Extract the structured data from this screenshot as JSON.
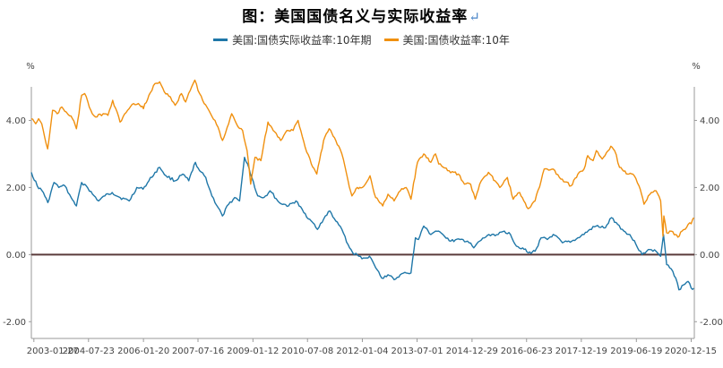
{
  "chart_data": {
    "type": "line",
    "title": "图：美国国债名义与实际收益率",
    "title_mark": "↵",
    "y_unit_left": "%",
    "y_unit_right": "%",
    "ylim": [
      -2.5,
      5.0
    ],
    "yticks": [
      4.0,
      2.0,
      0.0,
      -2.0
    ],
    "ytick_labels": [
      "4.00",
      "2.00",
      "0.00",
      "-2.00"
    ],
    "xlim": [
      "2003-01-02",
      "2021-01-15"
    ],
    "xticks": [
      "2003-01-27",
      "2004-07-23",
      "2006-01-20",
      "2007-07-16",
      "2009-01-12",
      "2010-07-08",
      "2012-01-04",
      "2013-07-01",
      "2014-12-29",
      "2016-06-23",
      "2017-12-19",
      "2019-06-19",
      "2020-12-15"
    ],
    "legend_position": "top-center",
    "grid": false,
    "zero_line": true,
    "colors": {
      "real": "#1f77a8",
      "nominal": "#f0900f",
      "zero": "#5a3a3a",
      "axis": "#9a9a9a"
    },
    "series": [
      {
        "name": "美国:国债实际收益率:10年期",
        "color": "#1f77a8",
        "points": [
          [
            "2003-01-02",
            2.45
          ],
          [
            "2003-03-01",
            2.05
          ],
          [
            "2003-05-01",
            1.85
          ],
          [
            "2003-06-15",
            1.55
          ],
          [
            "2003-08-15",
            2.15
          ],
          [
            "2003-10-01",
            2.0
          ],
          [
            "2003-12-01",
            2.05
          ],
          [
            "2004-02-01",
            1.7
          ],
          [
            "2004-03-25",
            1.45
          ],
          [
            "2004-05-15",
            2.15
          ],
          [
            "2004-07-01",
            2.05
          ],
          [
            "2004-09-01",
            1.8
          ],
          [
            "2004-11-01",
            1.6
          ],
          [
            "2005-01-01",
            1.75
          ],
          [
            "2005-03-15",
            1.85
          ],
          [
            "2005-06-01",
            1.7
          ],
          [
            "2005-09-01",
            1.6
          ],
          [
            "2005-11-15",
            2.0
          ],
          [
            "2006-01-15",
            1.95
          ],
          [
            "2006-03-15",
            2.2
          ],
          [
            "2006-05-15",
            2.45
          ],
          [
            "2006-06-30",
            2.6
          ],
          [
            "2006-09-01",
            2.35
          ],
          [
            "2006-12-01",
            2.2
          ],
          [
            "2007-02-15",
            2.4
          ],
          [
            "2007-04-15",
            2.2
          ],
          [
            "2007-06-20",
            2.75
          ],
          [
            "2007-08-01",
            2.5
          ],
          [
            "2007-10-01",
            2.3
          ],
          [
            "2007-12-01",
            1.75
          ],
          [
            "2008-02-01",
            1.4
          ],
          [
            "2008-03-15",
            1.15
          ],
          [
            "2008-05-15",
            1.5
          ],
          [
            "2008-07-15",
            1.7
          ],
          [
            "2008-09-01",
            1.6
          ],
          [
            "2008-10-20",
            2.9
          ],
          [
            "2008-11-20",
            2.7
          ],
          [
            "2009-01-01",
            2.3
          ],
          [
            "2009-03-01",
            1.75
          ],
          [
            "2009-05-01",
            1.7
          ],
          [
            "2009-07-01",
            1.9
          ],
          [
            "2009-10-01",
            1.55
          ],
          [
            "2010-01-01",
            1.45
          ],
          [
            "2010-03-15",
            1.6
          ],
          [
            "2010-06-01",
            1.25
          ],
          [
            "2010-08-15",
            1.0
          ],
          [
            "2010-10-15",
            0.75
          ],
          [
            "2011-01-01",
            1.15
          ],
          [
            "2011-02-15",
            1.3
          ],
          [
            "2011-04-15",
            1.0
          ],
          [
            "2011-06-15",
            0.75
          ],
          [
            "2011-08-15",
            0.3
          ],
          [
            "2011-10-01",
            0.05
          ],
          [
            "2011-12-01",
            -0.05
          ],
          [
            "2012-01-15",
            -0.1
          ],
          [
            "2012-03-15",
            -0.05
          ],
          [
            "2012-05-01",
            -0.3
          ],
          [
            "2012-07-15",
            -0.7
          ],
          [
            "2012-09-15",
            -0.6
          ],
          [
            "2012-11-15",
            -0.75
          ],
          [
            "2013-01-15",
            -0.6
          ],
          [
            "2013-03-15",
            -0.55
          ],
          [
            "2013-05-01",
            -0.55
          ],
          [
            "2013-06-15",
            0.5
          ],
          [
            "2013-07-15",
            0.45
          ],
          [
            "2013-09-05",
            0.85
          ],
          [
            "2013-11-15",
            0.6
          ],
          [
            "2014-01-01",
            0.7
          ],
          [
            "2014-03-15",
            0.6
          ],
          [
            "2014-06-01",
            0.4
          ],
          [
            "2014-09-01",
            0.45
          ],
          [
            "2014-11-15",
            0.4
          ],
          [
            "2015-01-15",
            0.2
          ],
          [
            "2015-03-15",
            0.4
          ],
          [
            "2015-06-15",
            0.6
          ],
          [
            "2015-09-15",
            0.6
          ],
          [
            "2015-11-15",
            0.7
          ],
          [
            "2016-01-15",
            0.6
          ],
          [
            "2016-03-15",
            0.25
          ],
          [
            "2016-05-15",
            0.2
          ],
          [
            "2016-07-10",
            0.05
          ],
          [
            "2016-09-15",
            0.1
          ],
          [
            "2016-11-15",
            0.5
          ],
          [
            "2017-01-15",
            0.45
          ],
          [
            "2017-03-15",
            0.6
          ],
          [
            "2017-06-15",
            0.35
          ],
          [
            "2017-09-15",
            0.4
          ],
          [
            "2017-11-15",
            0.5
          ],
          [
            "2018-01-15",
            0.6
          ],
          [
            "2018-03-15",
            0.75
          ],
          [
            "2018-05-15",
            0.85
          ],
          [
            "2018-08-15",
            0.8
          ],
          [
            "2018-10-15",
            1.1
          ],
          [
            "2018-12-15",
            0.9
          ],
          [
            "2019-02-15",
            0.7
          ],
          [
            "2019-04-15",
            0.6
          ],
          [
            "2019-06-15",
            0.3
          ],
          [
            "2019-08-15",
            0.0
          ],
          [
            "2019-10-15",
            0.15
          ],
          [
            "2020-01-01",
            0.1
          ],
          [
            "2020-02-15",
            -0.05
          ],
          [
            "2020-03-15",
            0.6
          ],
          [
            "2020-04-15",
            -0.3
          ],
          [
            "2020-06-15",
            -0.5
          ],
          [
            "2020-07-15",
            -0.7
          ],
          [
            "2020-08-15",
            -1.05
          ],
          [
            "2020-10-01",
            -0.9
          ],
          [
            "2020-11-15",
            -0.8
          ],
          [
            "2020-12-15",
            -1.0
          ],
          [
            "2021-01-10",
            -1.0
          ]
        ]
      },
      {
        "name": "美国:国债收益率:10年",
        "color": "#f0900f",
        "points": [
          [
            "2003-01-02",
            4.05
          ],
          [
            "2003-02-15",
            3.9
          ],
          [
            "2003-03-15",
            4.05
          ],
          [
            "2003-04-15",
            3.9
          ],
          [
            "2003-06-13",
            3.15
          ],
          [
            "2003-08-01",
            4.3
          ],
          [
            "2003-09-15",
            4.2
          ],
          [
            "2003-11-01",
            4.4
          ],
          [
            "2003-12-15",
            4.25
          ],
          [
            "2004-02-15",
            4.05
          ],
          [
            "2004-03-25",
            3.75
          ],
          [
            "2004-05-15",
            4.75
          ],
          [
            "2004-06-15",
            4.8
          ],
          [
            "2004-08-15",
            4.3
          ],
          [
            "2004-10-01",
            4.1
          ],
          [
            "2004-12-15",
            4.2
          ],
          [
            "2005-02-01",
            4.15
          ],
          [
            "2005-03-20",
            4.6
          ],
          [
            "2005-06-01",
            3.95
          ],
          [
            "2005-08-15",
            4.3
          ],
          [
            "2005-10-15",
            4.5
          ],
          [
            "2005-12-15",
            4.45
          ],
          [
            "2006-01-20",
            4.35
          ],
          [
            "2006-03-15",
            4.75
          ],
          [
            "2006-05-15",
            5.1
          ],
          [
            "2006-06-30",
            5.15
          ],
          [
            "2006-08-15",
            4.85
          ],
          [
            "2006-10-15",
            4.7
          ],
          [
            "2006-12-01",
            4.45
          ],
          [
            "2007-02-01",
            4.8
          ],
          [
            "2007-03-15",
            4.55
          ],
          [
            "2007-06-15",
            5.2
          ],
          [
            "2007-08-01",
            4.8
          ],
          [
            "2007-09-15",
            4.5
          ],
          [
            "2007-11-01",
            4.3
          ],
          [
            "2008-01-01",
            4.0
          ],
          [
            "2008-03-15",
            3.4
          ],
          [
            "2008-05-15",
            3.9
          ],
          [
            "2008-06-15",
            4.2
          ],
          [
            "2008-08-01",
            3.9
          ],
          [
            "2008-10-01",
            3.7
          ],
          [
            "2008-11-15",
            3.1
          ],
          [
            "2008-12-20",
            2.1
          ],
          [
            "2009-02-01",
            2.9
          ],
          [
            "2009-04-01",
            2.8
          ],
          [
            "2009-06-10",
            3.95
          ],
          [
            "2009-08-01",
            3.7
          ],
          [
            "2009-10-15",
            3.4
          ],
          [
            "2009-12-15",
            3.7
          ],
          [
            "2010-02-15",
            3.7
          ],
          [
            "2010-04-05",
            4.0
          ],
          [
            "2010-06-15",
            3.2
          ],
          [
            "2010-08-15",
            2.7
          ],
          [
            "2010-10-08",
            2.4
          ],
          [
            "2010-12-15",
            3.4
          ],
          [
            "2011-02-08",
            3.75
          ],
          [
            "2011-04-15",
            3.4
          ],
          [
            "2011-06-15",
            3.0
          ],
          [
            "2011-08-15",
            2.2
          ],
          [
            "2011-09-22",
            1.75
          ],
          [
            "2011-11-15",
            2.0
          ],
          [
            "2012-01-04",
            2.0
          ],
          [
            "2012-03-20",
            2.35
          ],
          [
            "2012-05-15",
            1.7
          ],
          [
            "2012-07-25",
            1.45
          ],
          [
            "2012-09-15",
            1.8
          ],
          [
            "2012-11-15",
            1.6
          ],
          [
            "2013-01-15",
            1.9
          ],
          [
            "2013-03-15",
            2.0
          ],
          [
            "2013-05-01",
            1.65
          ],
          [
            "2013-07-05",
            2.75
          ],
          [
            "2013-09-05",
            3.0
          ],
          [
            "2013-11-15",
            2.75
          ],
          [
            "2013-12-31",
            3.0
          ],
          [
            "2014-02-01",
            2.7
          ],
          [
            "2014-05-15",
            2.5
          ],
          [
            "2014-08-15",
            2.4
          ],
          [
            "2014-10-15",
            2.1
          ],
          [
            "2014-12-15",
            2.1
          ],
          [
            "2015-01-30",
            1.65
          ],
          [
            "2015-03-15",
            2.1
          ],
          [
            "2015-06-10",
            2.45
          ],
          [
            "2015-08-15",
            2.2
          ],
          [
            "2015-10-01",
            2.0
          ],
          [
            "2015-12-15",
            2.3
          ],
          [
            "2016-02-11",
            1.65
          ],
          [
            "2016-04-15",
            1.85
          ],
          [
            "2016-07-08",
            1.37
          ],
          [
            "2016-09-15",
            1.6
          ],
          [
            "2016-11-15",
            2.2
          ],
          [
            "2016-12-15",
            2.55
          ],
          [
            "2017-03-15",
            2.55
          ],
          [
            "2017-05-15",
            2.3
          ],
          [
            "2017-09-08",
            2.05
          ],
          [
            "2017-11-15",
            2.4
          ],
          [
            "2018-01-15",
            2.55
          ],
          [
            "2018-02-21",
            2.95
          ],
          [
            "2018-04-15",
            2.8
          ],
          [
            "2018-05-17",
            3.1
          ],
          [
            "2018-07-15",
            2.85
          ],
          [
            "2018-10-08",
            3.23
          ],
          [
            "2018-11-15",
            3.1
          ],
          [
            "2019-01-03",
            2.6
          ],
          [
            "2019-03-25",
            2.4
          ],
          [
            "2019-05-15",
            2.4
          ],
          [
            "2019-07-15",
            2.05
          ],
          [
            "2019-09-03",
            1.5
          ],
          [
            "2019-10-15",
            1.75
          ],
          [
            "2019-11-15",
            1.85
          ],
          [
            "2020-01-01",
            1.9
          ],
          [
            "2020-02-15",
            1.6
          ],
          [
            "2020-03-09",
            0.55
          ],
          [
            "2020-03-18",
            1.15
          ],
          [
            "2020-04-15",
            0.65
          ],
          [
            "2020-05-15",
            0.7
          ],
          [
            "2020-07-15",
            0.6
          ],
          [
            "2020-08-04",
            0.52
          ],
          [
            "2020-09-15",
            0.7
          ],
          [
            "2020-10-15",
            0.75
          ],
          [
            "2020-11-15",
            0.9
          ],
          [
            "2020-12-15",
            0.92
          ],
          [
            "2021-01-10",
            1.1
          ]
        ]
      }
    ]
  }
}
